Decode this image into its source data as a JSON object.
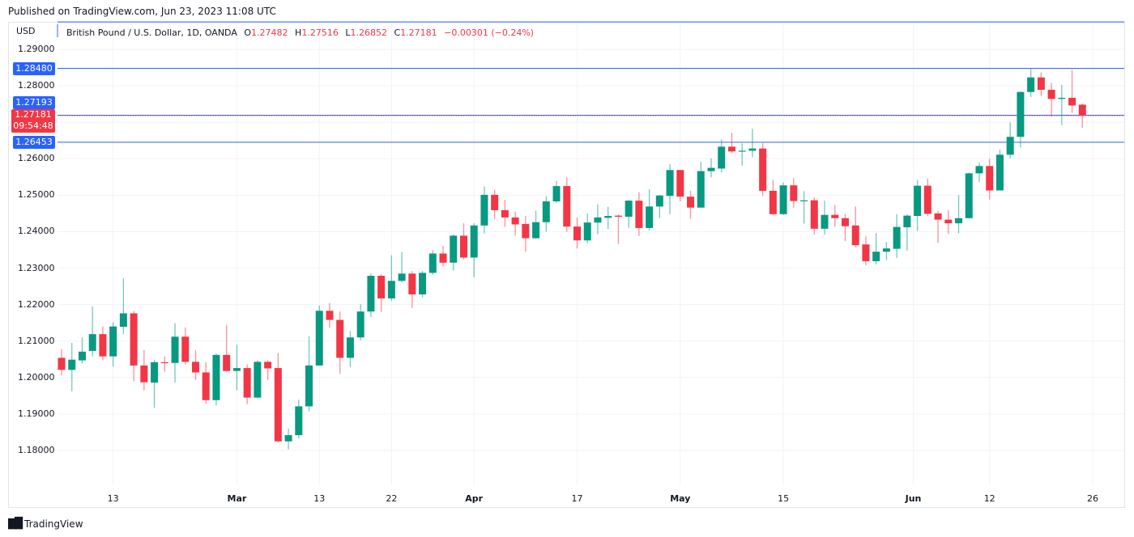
{
  "published": "Published on TradingView.com, Jun 23, 2023 11:08 UTC",
  "currency": "USD",
  "legend": {
    "symbol": "British Pound / U.S. Dollar, 1D, OANDA",
    "o_label": "O",
    "o": "1.27482",
    "h_label": "H",
    "h": "1.27516",
    "l_label": "L",
    "l": "1.26852",
    "c_label": "C",
    "c": "1.27181",
    "change": "−0.00301 (−0.24%)"
  },
  "badges": {
    "level1": "1.28480",
    "level2": "1.27193",
    "last_price": "1.27181",
    "countdown": "09:54:48",
    "level3": "1.26453"
  },
  "footer": {
    "logo_text": "TradingView"
  },
  "colors": {
    "up": "#089981",
    "down": "#f23645",
    "line": "#2962ff",
    "grid": "#f0f3fa"
  },
  "chart_data": {
    "type": "candlestick",
    "title": "British Pound / U.S. Dollar, 1D, OANDA",
    "ylabel": "USD",
    "ylim": [
      1.1735,
      1.3025
    ],
    "grid": true,
    "yticks": [
      "1.29000",
      "1.28000",
      "1.26000",
      "1.25000",
      "1.24000",
      "1.23000",
      "1.22000",
      "1.21000",
      "1.20000",
      "1.19000",
      "1.18000"
    ],
    "ytick_values": [
      1.29,
      1.28,
      1.26,
      1.25,
      1.24,
      1.23,
      1.22,
      1.21,
      1.2,
      1.19,
      1.18
    ],
    "grid_values": [
      1.29,
      1.28,
      1.27,
      1.26,
      1.25,
      1.24,
      1.23,
      1.22,
      1.21,
      1.2,
      1.19,
      1.18
    ],
    "xticks": [
      {
        "label": "13",
        "bold": false,
        "bar": 5
      },
      {
        "label": "Mar",
        "bold": true,
        "bar": 17
      },
      {
        "label": "13",
        "bold": false,
        "bar": 25
      },
      {
        "label": "22",
        "bold": false,
        "bar": 32
      },
      {
        "label": "Apr",
        "bold": true,
        "bar": 40
      },
      {
        "label": "17",
        "bold": false,
        "bar": 50
      },
      {
        "label": "May",
        "bold": true,
        "bar": 60
      },
      {
        "label": "15",
        "bold": false,
        "bar": 70
      },
      {
        "label": "Jun",
        "bold": true,
        "bar": 82.6
      },
      {
        "label": "12",
        "bold": false,
        "bar": 90
      },
      {
        "label": "26",
        "bold": false,
        "bar": 100
      }
    ],
    "horizontal_lines": [
      1.2975,
      1.2848,
      1.27193,
      1.26453
    ],
    "last_price": 1.27181,
    "ohlc_fields": [
      "open",
      "high",
      "low",
      "close"
    ],
    "candles": [
      [
        1.2054,
        1.2078,
        1.2007,
        1.2021
      ],
      [
        1.2021,
        1.2095,
        1.1962,
        1.2049
      ],
      [
        1.2047,
        1.211,
        1.2039,
        1.2071
      ],
      [
        1.2073,
        1.2195,
        1.2058,
        1.2119
      ],
      [
        1.2119,
        1.214,
        1.2047,
        1.2058
      ],
      [
        1.2058,
        1.2152,
        1.203,
        1.214
      ],
      [
        1.2139,
        1.2272,
        1.2119,
        1.2176
      ],
      [
        1.2176,
        1.2182,
        1.199,
        1.2033
      ],
      [
        1.2033,
        1.2075,
        1.1965,
        1.1987
      ],
      [
        1.1986,
        1.2049,
        1.1917,
        1.2042
      ],
      [
        1.2042,
        1.2058,
        1.2016,
        1.204
      ],
      [
        1.204,
        1.2149,
        1.1986,
        1.2112
      ],
      [
        1.2112,
        1.2137,
        1.2036,
        1.2043
      ],
      [
        1.2043,
        1.2075,
        1.1993,
        1.2014
      ],
      [
        1.2014,
        1.2042,
        1.1928,
        1.1938
      ],
      [
        1.1938,
        1.2066,
        1.1923,
        1.2062
      ],
      [
        1.2062,
        1.2144,
        1.2016,
        1.2018
      ],
      [
        1.2018,
        1.209,
        1.1965,
        1.2026
      ],
      [
        1.2026,
        1.2036,
        1.1927,
        1.1945
      ],
      [
        1.1945,
        1.2047,
        1.1943,
        1.2043
      ],
      [
        1.2043,
        1.2047,
        1.1993,
        1.2025
      ],
      [
        1.2026,
        1.2067,
        1.1822,
        1.1825
      ],
      [
        1.1825,
        1.186,
        1.1803,
        1.1842
      ],
      [
        1.1842,
        1.1939,
        1.1833,
        1.1921
      ],
      [
        1.1921,
        1.2113,
        1.1907,
        1.2033
      ],
      [
        1.2033,
        1.2198,
        1.2033,
        1.2183
      ],
      [
        1.2183,
        1.2204,
        1.2136,
        1.2158
      ],
      [
        1.2158,
        1.2181,
        1.201,
        1.2054
      ],
      [
        1.2054,
        1.2127,
        1.2028,
        1.211
      ],
      [
        1.211,
        1.2201,
        1.2102,
        1.2181
      ],
      [
        1.2181,
        1.2285,
        1.2166,
        1.2279
      ],
      [
        1.2279,
        1.2283,
        1.218,
        1.2217
      ],
      [
        1.2217,
        1.2335,
        1.221,
        1.2265
      ],
      [
        1.2265,
        1.2344,
        1.2261,
        1.2285
      ],
      [
        1.2285,
        1.2292,
        1.2191,
        1.2228
      ],
      [
        1.2228,
        1.2292,
        1.222,
        1.2287
      ],
      [
        1.2287,
        1.2349,
        1.2282,
        1.234
      ],
      [
        1.234,
        1.2361,
        1.2304,
        1.2315
      ],
      [
        1.2315,
        1.2392,
        1.2293,
        1.2389
      ],
      [
        1.2389,
        1.2423,
        1.2324,
        1.2329
      ],
      [
        1.2329,
        1.2423,
        1.2275,
        1.2417
      ],
      [
        1.2417,
        1.2524,
        1.2395,
        1.2501
      ],
      [
        1.2501,
        1.2515,
        1.2434,
        1.2459
      ],
      [
        1.2459,
        1.2487,
        1.2413,
        1.2439
      ],
      [
        1.2439,
        1.2455,
        1.2389,
        1.242
      ],
      [
        1.2421,
        1.2443,
        1.2345,
        1.2382
      ],
      [
        1.2382,
        1.2457,
        1.2381,
        1.2426
      ],
      [
        1.2426,
        1.2497,
        1.24,
        1.2483
      ],
      [
        1.2483,
        1.2539,
        1.2479,
        1.2525
      ],
      [
        1.2525,
        1.2549,
        1.24,
        1.2414
      ],
      [
        1.2414,
        1.2439,
        1.2354,
        1.2376
      ],
      [
        1.2376,
        1.245,
        1.2368,
        1.2425
      ],
      [
        1.2425,
        1.2475,
        1.2393,
        1.2439
      ],
      [
        1.2438,
        1.2468,
        1.2407,
        1.2443
      ],
      [
        1.2444,
        1.2447,
        1.2366,
        1.2441
      ],
      [
        1.2441,
        1.2487,
        1.2411,
        1.2485
      ],
      [
        1.2485,
        1.2508,
        1.2388,
        1.241
      ],
      [
        1.241,
        1.2516,
        1.2403,
        1.2469
      ],
      [
        1.2469,
        1.2501,
        1.2437,
        1.2499
      ],
      [
        1.2498,
        1.2585,
        1.2448,
        1.2569
      ],
      [
        1.2569,
        1.257,
        1.2483,
        1.2496
      ],
      [
        1.2496,
        1.2512,
        1.2435,
        1.2466
      ],
      [
        1.2466,
        1.2592,
        1.2466,
        1.2566
      ],
      [
        1.2566,
        1.2601,
        1.2549,
        1.2575
      ],
      [
        1.2573,
        1.2653,
        1.2562,
        1.2633
      ],
      [
        1.2633,
        1.2671,
        1.2615,
        1.262
      ],
      [
        1.2621,
        1.2642,
        1.2581,
        1.2622
      ],
      [
        1.2622,
        1.2682,
        1.2604,
        1.2628
      ],
      [
        1.2628,
        1.2643,
        1.2498,
        1.2512
      ],
      [
        1.2512,
        1.2542,
        1.2446,
        1.2448
      ],
      [
        1.2448,
        1.2535,
        1.2446,
        1.2527
      ],
      [
        1.2527,
        1.2547,
        1.2466,
        1.2484
      ],
      [
        1.2484,
        1.2511,
        1.2422,
        1.2486
      ],
      [
        1.2486,
        1.2494,
        1.2392,
        1.2408
      ],
      [
        1.2408,
        1.2485,
        1.2392,
        1.2446
      ],
      [
        1.2446,
        1.2473,
        1.2414,
        1.2437
      ],
      [
        1.2437,
        1.2448,
        1.2374,
        1.2415
      ],
      [
        1.2417,
        1.2469,
        1.2357,
        1.2363
      ],
      [
        1.2365,
        1.2387,
        1.2308,
        1.2319
      ],
      [
        1.2319,
        1.2396,
        1.231,
        1.2345
      ],
      [
        1.2345,
        1.2371,
        1.2322,
        1.2354
      ],
      [
        1.2353,
        1.2448,
        1.2328,
        1.2413
      ],
      [
        1.2412,
        1.2448,
        1.2348,
        1.2444
      ],
      [
        1.2443,
        1.2542,
        1.2402,
        1.2526
      ],
      [
        1.2526,
        1.2546,
        1.2443,
        1.2449
      ],
      [
        1.245,
        1.2457,
        1.237,
        1.2433
      ],
      [
        1.2433,
        1.2459,
        1.2394,
        1.2423
      ],
      [
        1.2423,
        1.25,
        1.2396,
        1.2437
      ],
      [
        1.2437,
        1.2562,
        1.2437,
        1.256
      ],
      [
        1.256,
        1.259,
        1.2535,
        1.258
      ],
      [
        1.258,
        1.26,
        1.2488,
        1.2513
      ],
      [
        1.2513,
        1.2625,
        1.2513,
        1.2611
      ],
      [
        1.2611,
        1.27,
        1.2601,
        1.266
      ],
      [
        1.266,
        1.2785,
        1.2631,
        1.2783
      ],
      [
        1.2783,
        1.2848,
        1.2769,
        1.2823
      ],
      [
        1.2823,
        1.2837,
        1.2772,
        1.2789
      ],
      [
        1.2789,
        1.2808,
        1.2715,
        1.2764
      ],
      [
        1.2764,
        1.2803,
        1.2692,
        1.2767
      ],
      [
        1.2767,
        1.2844,
        1.2726,
        1.2746
      ],
      [
        1.27482,
        1.27516,
        1.26852,
        1.27181
      ]
    ]
  }
}
